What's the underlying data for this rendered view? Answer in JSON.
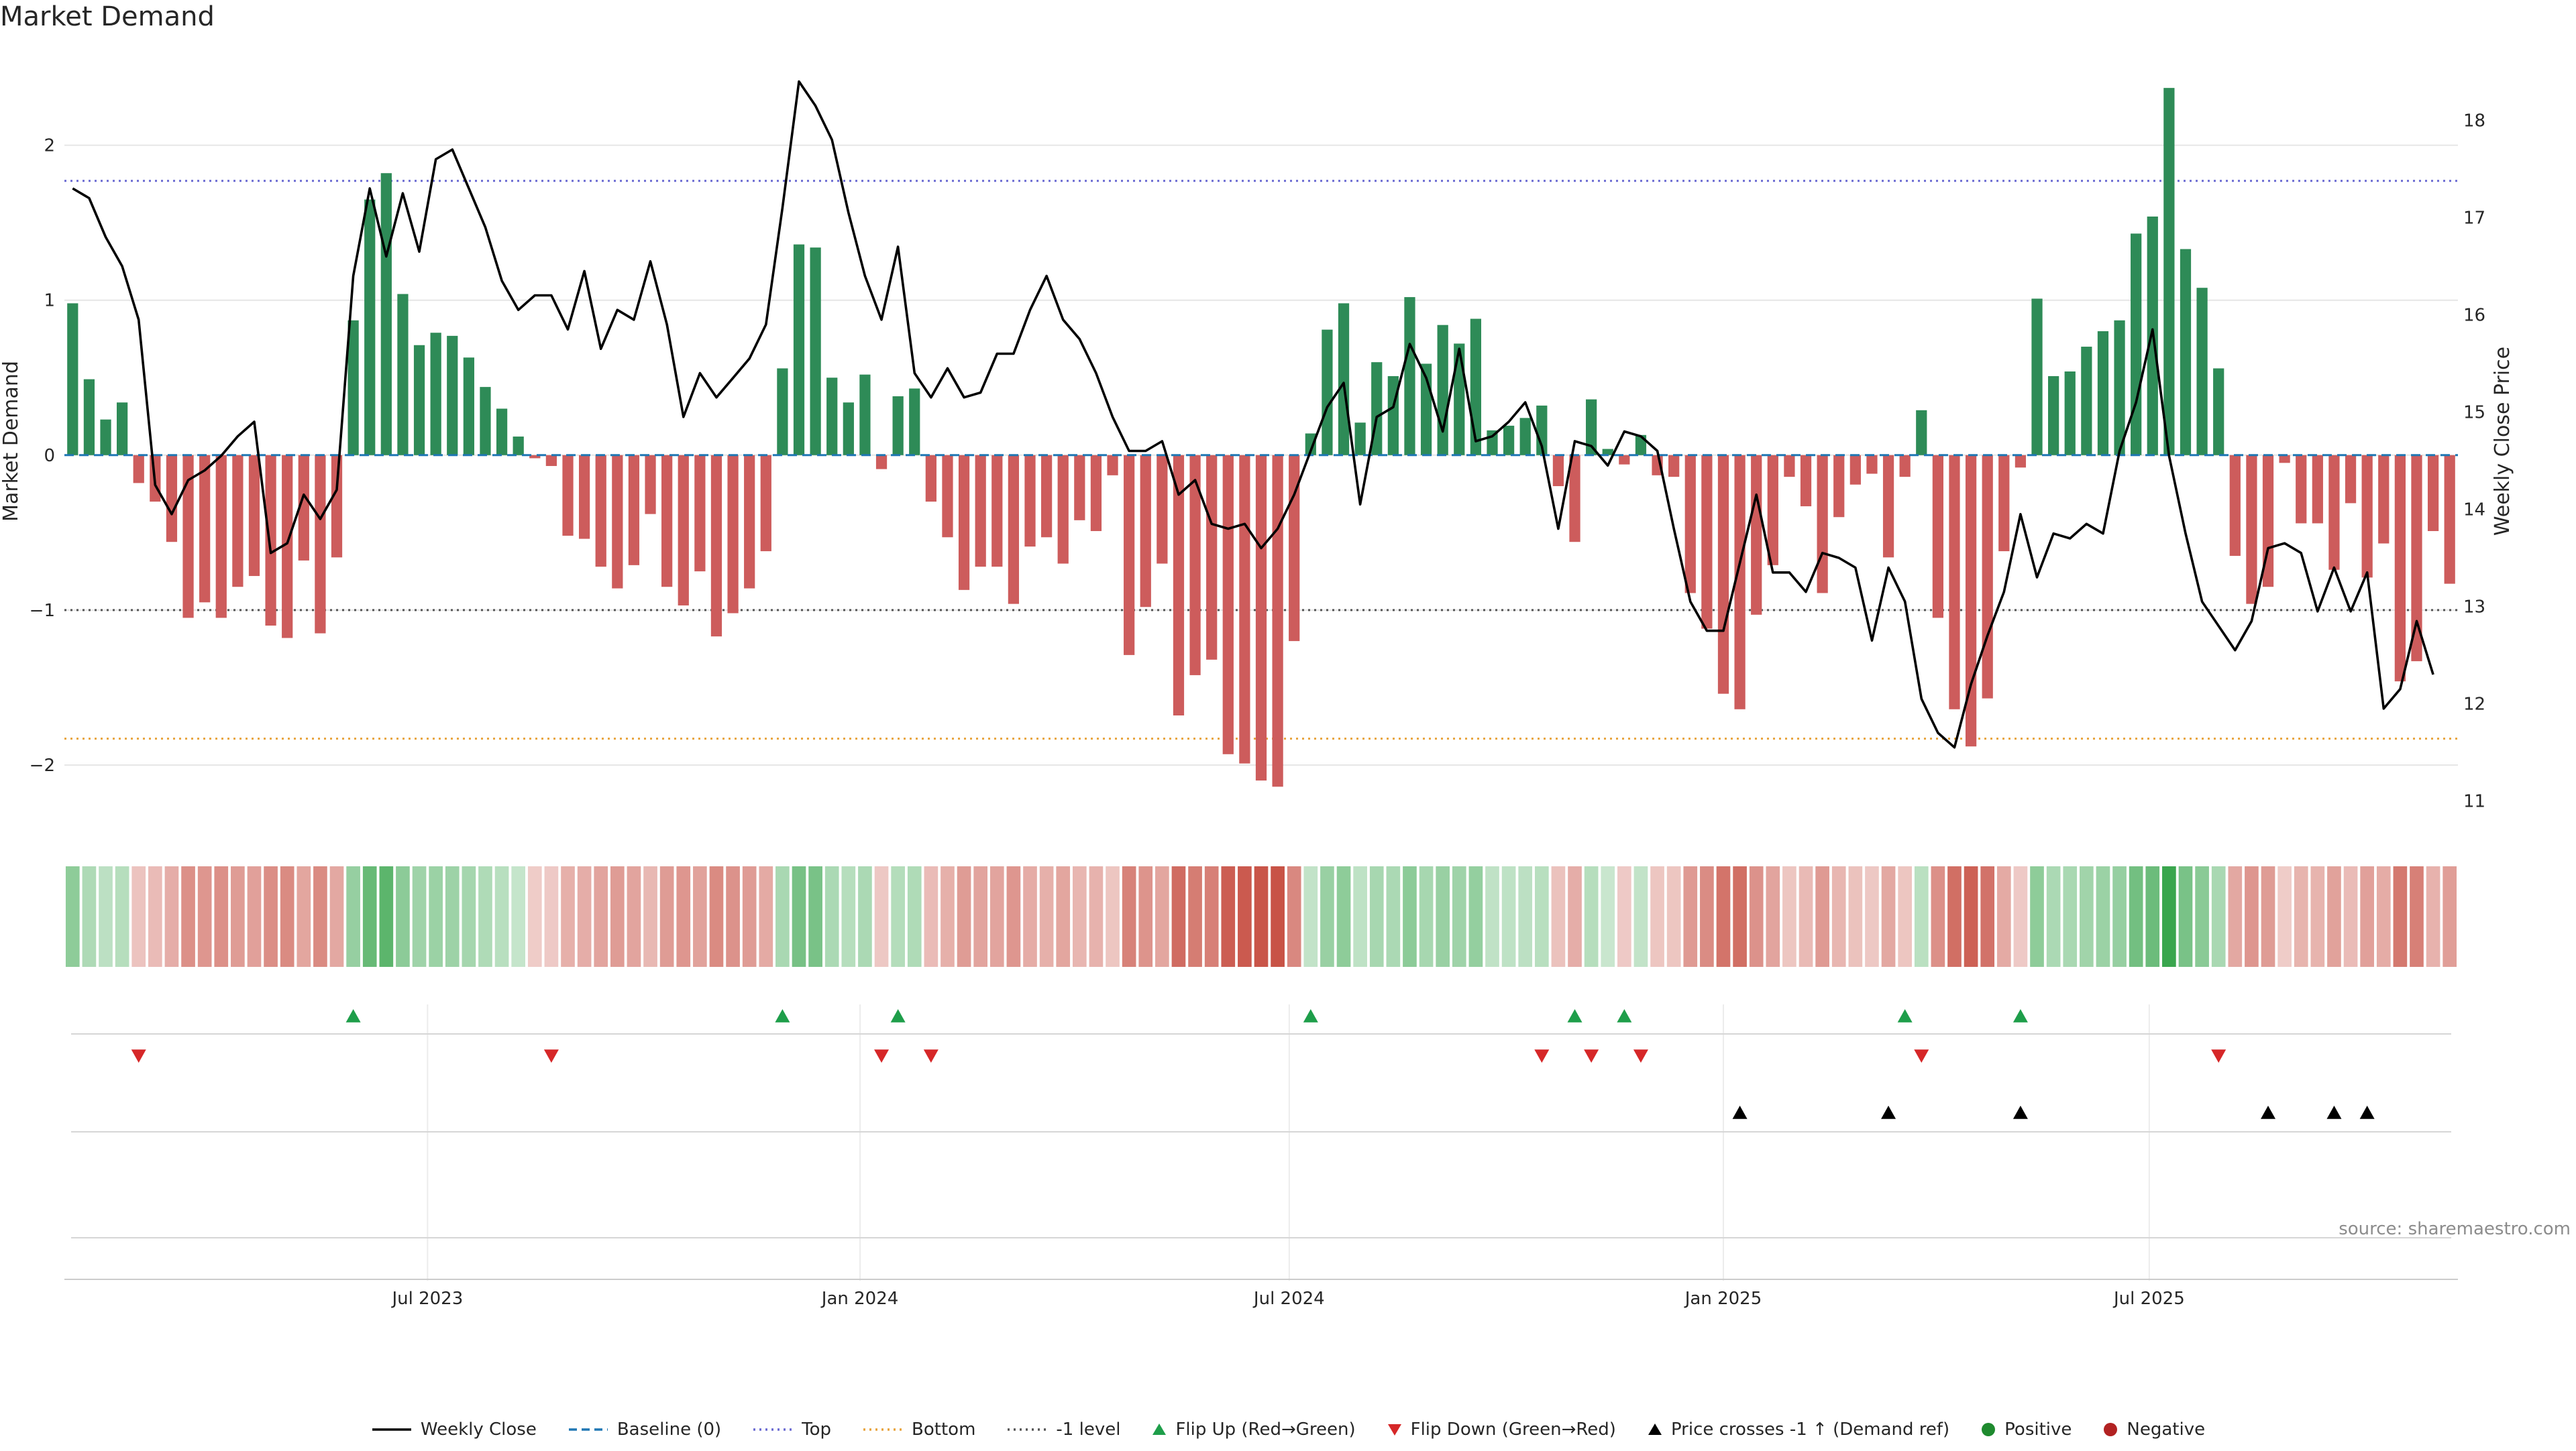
{
  "title": "Market Demand",
  "source": "source: sharemaestro.com",
  "colors": {
    "positive": "#2e8b57",
    "negative": "#cd5c5c",
    "price": "#000000",
    "baseline": "#1f77b4",
    "top": "#6a6ad2",
    "bottom": "#e8a33c",
    "minus_one": "#555555",
    "flip_up": "#1e9e4a",
    "flip_down": "#d62728",
    "cross": "#000000",
    "grid": "#e6e6e6"
  },
  "legend": [
    {
      "label": "Weekly Close",
      "kind": "line",
      "color": "#000000"
    },
    {
      "label": "Baseline (0)",
      "kind": "dashed",
      "color": "#1f77b4"
    },
    {
      "label": "Top",
      "kind": "dotted",
      "color": "#6a6ad2"
    },
    {
      "label": "Bottom",
      "kind": "dotted",
      "color": "#e8a33c"
    },
    {
      "label": "-1 level",
      "kind": "dotted",
      "color": "#555555"
    },
    {
      "label": "Flip Up (Red→Green)",
      "kind": "tri-up",
      "color": "#1e9e4a"
    },
    {
      "label": "Flip Down (Green→Red)",
      "kind": "tri-down",
      "color": "#d62728"
    },
    {
      "label": "Price crosses -1 ↑ (Demand ref)",
      "kind": "tri-up",
      "color": "#000000"
    },
    {
      "label": "Positive",
      "kind": "dot",
      "color": "#1e8a2e"
    },
    {
      "label": "Negative",
      "kind": "dot",
      "color": "#b22222"
    }
  ],
  "chart_data": {
    "type": "bar",
    "title": "Market Demand",
    "xlabel": "",
    "ylabel": "Market Demand",
    "y2label": "Weekly Close Price",
    "ylim": [
      -2.42,
      2.6
    ],
    "y2lim": [
      10.7,
      18.7
    ],
    "yticks": [
      2,
      1,
      0,
      -1,
      -2
    ],
    "ytick_labels": [
      "2",
      "1",
      "0",
      "−1",
      "−2"
    ],
    "y2ticks": [
      18,
      17,
      16,
      15,
      14,
      13,
      12,
      11
    ],
    "xticks": [
      {
        "label": "Jul 2023",
        "index": 21.5
      },
      {
        "label": "Jan 2024",
        "index": 47.7
      },
      {
        "label": "Jul 2024",
        "index": 73.7
      },
      {
        "label": "Jan 2025",
        "index": 100.0
      },
      {
        "label": "Jul 2025",
        "index": 125.8
      }
    ],
    "reference_lines": {
      "baseline": 0,
      "top": 1.77,
      "bottom": -1.83,
      "minus_one": -1
    },
    "demand": [
      0.98,
      0.49,
      0.23,
      0.34,
      -0.18,
      -0.3,
      -0.56,
      -1.05,
      -0.95,
      -1.05,
      -0.85,
      -0.78,
      -1.1,
      -1.18,
      -0.68,
      -1.15,
      -0.66,
      0.87,
      1.65,
      1.82,
      1.04,
      0.71,
      0.79,
      0.77,
      0.63,
      0.44,
      0.3,
      0.12,
      -0.02,
      -0.07,
      -0.52,
      -0.54,
      -0.72,
      -0.86,
      -0.71,
      -0.38,
      -0.85,
      -0.97,
      -0.75,
      -1.17,
      -1.02,
      -0.86,
      -0.62,
      0.56,
      1.36,
      1.34,
      0.5,
      0.34,
      0.52,
      -0.09,
      0.38,
      0.43,
      -0.3,
      -0.53,
      -0.87,
      -0.72,
      -0.72,
      -0.96,
      -0.59,
      -0.53,
      -0.7,
      -0.42,
      -0.49,
      -0.13,
      -1.29,
      -0.98,
      -0.7,
      -1.68,
      -1.42,
      -1.32,
      -1.93,
      -1.99,
      -2.1,
      -2.14,
      -1.2,
      0.14,
      0.81,
      0.98,
      0.21,
      0.6,
      0.51,
      1.02,
      0.59,
      0.84,
      0.72,
      0.88,
      0.16,
      0.19,
      0.24,
      0.32,
      -0.2,
      -0.56,
      0.36,
      0.04,
      -0.06,
      0.13,
      -0.13,
      -0.14,
      -0.89,
      -1.12,
      -1.54,
      -1.64,
      -1.03,
      -0.71,
      -0.14,
      -0.33,
      -0.89,
      -0.4,
      -0.19,
      -0.12,
      -0.66,
      -0.14,
      0.29,
      -1.05,
      -1.64,
      -1.88,
      -1.57,
      -0.62,
      -0.08,
      1.01,
      0.51,
      0.54,
      0.7,
      0.8,
      0.87,
      1.43,
      1.54,
      2.37,
      1.33,
      1.08,
      0.56,
      -0.65,
      -0.96,
      -0.85,
      -0.05,
      -0.44,
      -0.44,
      -0.74,
      -0.31,
      -0.79,
      -0.57,
      -1.46,
      -1.33,
      -0.49,
      -0.83
    ],
    "price": [
      17.3,
      17.2,
      16.8,
      16.5,
      15.95,
      14.25,
      13.95,
      14.3,
      14.4,
      14.55,
      14.75,
      14.9,
      13.55,
      13.65,
      14.15,
      13.9,
      14.2,
      16.4,
      17.3,
      16.6,
      17.25,
      16.65,
      17.6,
      17.7,
      17.3,
      16.9,
      16.35,
      16.05,
      16.2,
      16.2,
      15.85,
      16.45,
      15.65,
      16.05,
      15.95,
      16.55,
      15.9,
      14.95,
      15.4,
      15.15,
      15.35,
      15.55,
      15.9,
      17.1,
      18.4,
      18.15,
      17.8,
      17.05,
      16.4,
      15.95,
      16.7,
      15.4,
      15.15,
      15.45,
      15.15,
      15.2,
      15.6,
      15.6,
      16.05,
      16.4,
      15.95,
      15.75,
      15.4,
      14.95,
      14.6,
      14.6,
      14.7,
      14.15,
      14.3,
      13.85,
      13.8,
      13.85,
      13.6,
      13.8,
      14.15,
      14.6,
      15.05,
      15.3,
      14.05,
      14.95,
      15.05,
      15.7,
      15.35,
      14.8,
      15.65,
      14.7,
      14.75,
      14.9,
      15.1,
      14.65,
      13.8,
      14.7,
      14.65,
      14.45,
      14.8,
      14.75,
      14.6,
      13.8,
      13.05,
      12.75,
      12.75,
      13.45,
      14.15,
      13.35,
      13.35,
      13.15,
      13.55,
      13.5,
      13.4,
      12.65,
      13.4,
      13.05,
      12.05,
      11.7,
      11.55,
      12.2,
      12.7,
      13.15,
      13.95,
      13.3,
      13.75,
      13.7,
      13.85,
      13.75,
      14.6,
      15.1,
      15.85,
      14.55,
      13.75,
      13.05,
      12.8,
      12.55,
      12.85,
      13.6,
      13.65,
      13.55,
      12.95,
      13.4,
      12.95,
      13.35,
      11.95,
      12.15,
      12.85,
      12.3
    ],
    "flip_up": [
      17,
      43,
      50,
      75,
      91,
      94,
      111,
      118
    ],
    "flip_down": [
      4,
      29,
      49,
      52,
      89,
      92,
      95,
      112,
      130
    ],
    "price_cross_up": [
      101,
      110,
      118,
      133,
      137,
      139
    ]
  }
}
